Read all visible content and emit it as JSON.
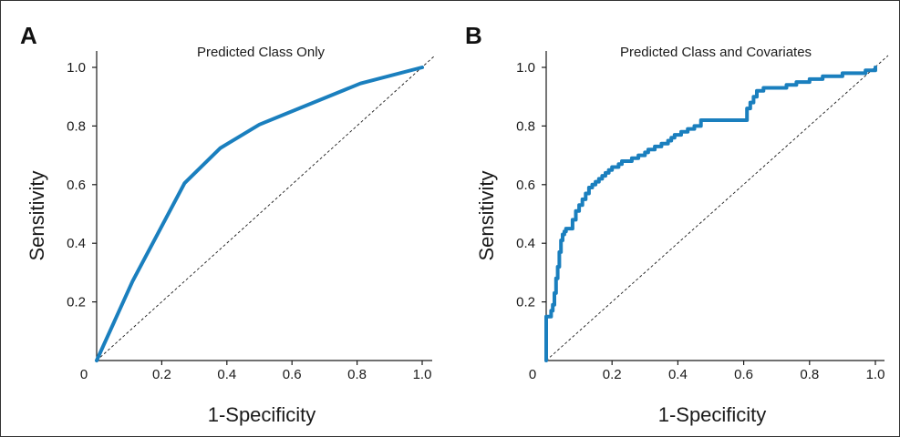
{
  "colors": {
    "curve": "#1a7fbe",
    "reference": "#1a1a1a"
  },
  "chart_data": [
    {
      "type": "line",
      "panel_letter": "A",
      "title": "Predicted Class Only",
      "xlabel": "1-Specificity",
      "ylabel": "Sensitivity",
      "xlim": [
        0,
        1
      ],
      "ylim": [
        0,
        1
      ],
      "x_ticks": [
        {
          "v": 0.2,
          "label": "0.2"
        },
        {
          "v": 0.4,
          "label": "0.4"
        },
        {
          "v": 0.6,
          "label": "0.6"
        },
        {
          "v": 0.8,
          "label": "0.8"
        },
        {
          "v": 1.0,
          "label": "1.0"
        }
      ],
      "y_ticks": [
        {
          "v": 0.2,
          "label": "0.2"
        },
        {
          "v": 0.4,
          "label": "0.4"
        },
        {
          "v": 0.6,
          "label": "0.6"
        },
        {
          "v": 0.8,
          "label": "0.8"
        },
        {
          "v": 1.0,
          "label": "1.0"
        }
      ],
      "origin_label": "0",
      "grid": false,
      "reference_line": true,
      "series": [
        {
          "x": [
            0,
            0.11,
            0.27,
            0.38,
            0.5,
            0.81,
            1.0
          ],
          "y": [
            0,
            0.27,
            0.605,
            0.725,
            0.805,
            0.945,
            1.0
          ]
        }
      ]
    },
    {
      "type": "line",
      "panel_letter": "B",
      "title": "Predicted Class and Covariates",
      "xlabel": "1-Specificity",
      "ylabel": "Sensitivity",
      "xlim": [
        0,
        1
      ],
      "ylim": [
        0,
        1
      ],
      "x_ticks": [
        {
          "v": 0.2,
          "label": "0.2"
        },
        {
          "v": 0.4,
          "label": "0.4"
        },
        {
          "v": 0.6,
          "label": "0.6"
        },
        {
          "v": 0.8,
          "label": "0.8"
        },
        {
          "v": 1.0,
          "label": "1.0"
        }
      ],
      "y_ticks": [
        {
          "v": 0.2,
          "label": "0.2"
        },
        {
          "v": 0.4,
          "label": "0.4"
        },
        {
          "v": 0.6,
          "label": "0.6"
        },
        {
          "v": 0.8,
          "label": "0.8"
        },
        {
          "v": 1.0,
          "label": "1.0"
        }
      ],
      "origin_label": "0",
      "grid": false,
      "reference_line": true,
      "step": true,
      "series": [
        {
          "x": [
            0,
            0,
            0.015,
            0.02,
            0.025,
            0.03,
            0.035,
            0.04,
            0.045,
            0.05,
            0.055,
            0.06,
            0.07,
            0.08,
            0.09,
            0.1,
            0.11,
            0.12,
            0.13,
            0.14,
            0.15,
            0.16,
            0.17,
            0.18,
            0.19,
            0.2,
            0.21,
            0.22,
            0.23,
            0.26,
            0.28,
            0.3,
            0.31,
            0.33,
            0.35,
            0.37,
            0.38,
            0.39,
            0.41,
            0.43,
            0.45,
            0.47,
            0.6,
            0.61,
            0.62,
            0.63,
            0.64,
            0.66,
            0.69,
            0.73,
            0.76,
            0.8,
            0.84,
            0.88,
            0.9,
            0.94,
            0.97,
            1.0
          ],
          "y": [
            0,
            0.15,
            0.17,
            0.19,
            0.23,
            0.28,
            0.32,
            0.37,
            0.41,
            0.43,
            0.44,
            0.45,
            0.45,
            0.48,
            0.51,
            0.53,
            0.55,
            0.57,
            0.59,
            0.6,
            0.61,
            0.62,
            0.63,
            0.64,
            0.65,
            0.66,
            0.66,
            0.67,
            0.68,
            0.69,
            0.7,
            0.71,
            0.72,
            0.73,
            0.74,
            0.75,
            0.76,
            0.77,
            0.78,
            0.79,
            0.8,
            0.82,
            0.82,
            0.86,
            0.88,
            0.9,
            0.92,
            0.93,
            0.93,
            0.94,
            0.95,
            0.96,
            0.97,
            0.97,
            0.98,
            0.98,
            0.99,
            1.0
          ]
        }
      ]
    }
  ]
}
